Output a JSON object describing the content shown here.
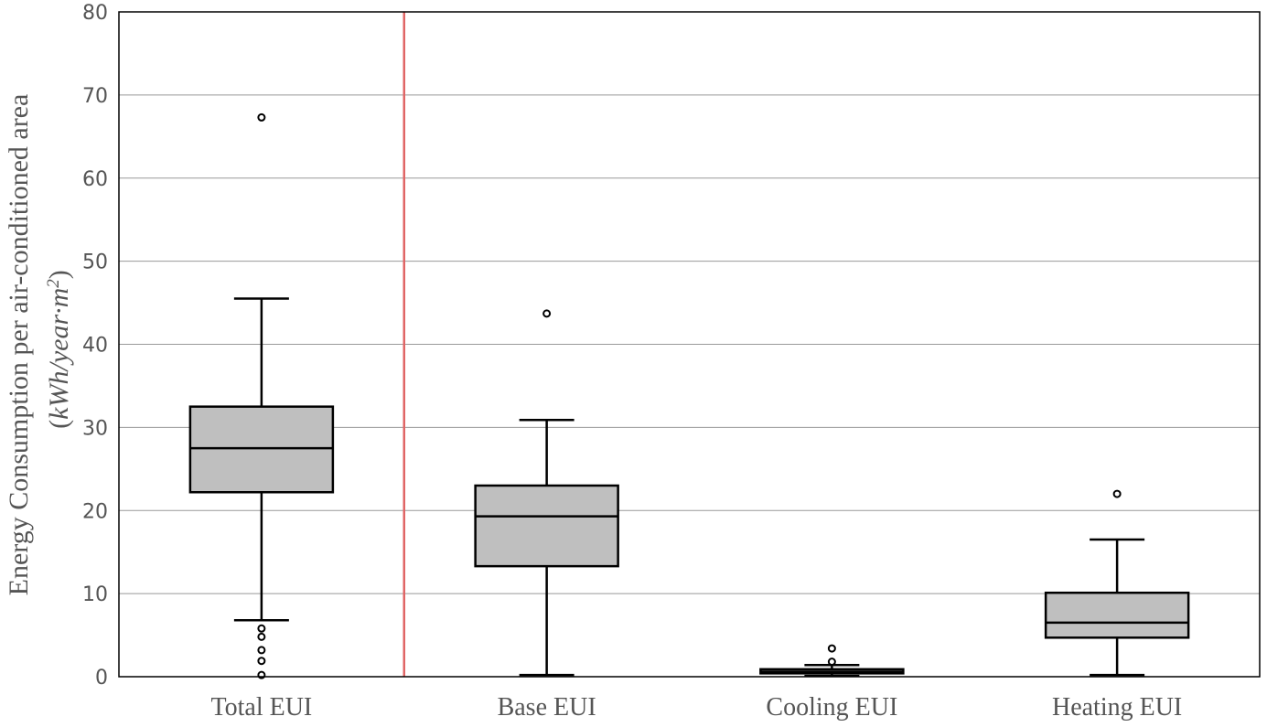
{
  "chart_data": {
    "type": "boxplot",
    "categories": [
      "Total EUI",
      "Base EUI",
      "Cooling EUI",
      "Heating EUI"
    ],
    "ylabel": "Energy Consumption per air-conditioned area",
    "ylabel_unit": {
      "open": "(",
      "main": "kWh/year·m",
      "sup": "2",
      "close": ")"
    },
    "ylim": [
      0,
      80
    ],
    "yticks": [
      0,
      10,
      20,
      30,
      40,
      50,
      60,
      70,
      80
    ],
    "grid": true,
    "separator_after_category": 0,
    "colors": {
      "box_fill": "#bfbfbf",
      "box_stroke": "#000000",
      "grid": "#999999",
      "separator": "#e06666",
      "text": "#555555"
    },
    "boxes": [
      {
        "category": "Total EUI",
        "whisker_low": 6.8,
        "q1": 22.2,
        "median": 27.5,
        "q3": 32.5,
        "whisker_high": 45.5,
        "outliers": [
          67.3,
          5.8,
          4.8,
          3.2,
          1.9,
          0.2
        ]
      },
      {
        "category": "Base EUI",
        "whisker_low": 0.2,
        "q1": 13.3,
        "median": 19.3,
        "q3": 23.0,
        "whisker_high": 30.9,
        "outliers": [
          43.7
        ]
      },
      {
        "category": "Cooling EUI",
        "whisker_low": 0.1,
        "q1": 0.4,
        "median": 0.6,
        "q3": 0.9,
        "whisker_high": 1.4,
        "outliers": [
          3.4,
          1.8
        ]
      },
      {
        "category": "Heating EUI",
        "whisker_low": 0.2,
        "q1": 4.7,
        "median": 6.5,
        "q3": 10.1,
        "whisker_high": 16.5,
        "outliers": [
          22.0
        ]
      }
    ]
  }
}
